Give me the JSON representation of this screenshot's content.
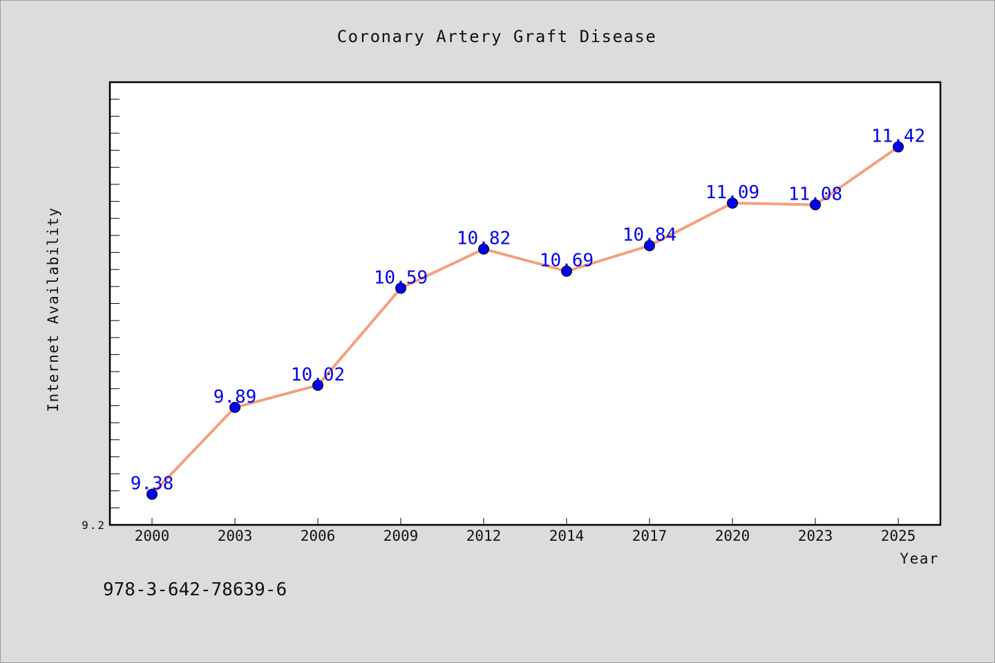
{
  "chart_data": {
    "type": "line",
    "title": "Coronary Artery Graft Disease",
    "xlabel": "Year",
    "ylabel": "Internet Availability",
    "categories": [
      "2000",
      "2003",
      "2006",
      "2009",
      "2012",
      "2014",
      "2017",
      "2020",
      "2023",
      "2025"
    ],
    "series": [
      {
        "values": [
          9.38,
          9.89,
          10.02,
          10.59,
          10.82,
          10.69,
          10.84,
          11.09,
          11.08,
          11.42
        ],
        "data_labels": [
          "9.38",
          "9.89",
          "10.02",
          "10.59",
          "10.82",
          "10.69",
          "10.84",
          "11.09",
          "11.08",
          "11.42"
        ]
      }
    ],
    "ylim": [
      9.2,
      11.8
    ],
    "y_tick_labels": [
      "9.2"
    ],
    "y_minor_tick_step": 0.1,
    "grid": false,
    "colors": {
      "line": "#f4a07c",
      "marker": "#0000ee",
      "data_label": "#0000ee",
      "background": "#dcdcdc",
      "plot_background": "#ffffff"
    }
  },
  "footer_text": "978-3-642-78639-6"
}
